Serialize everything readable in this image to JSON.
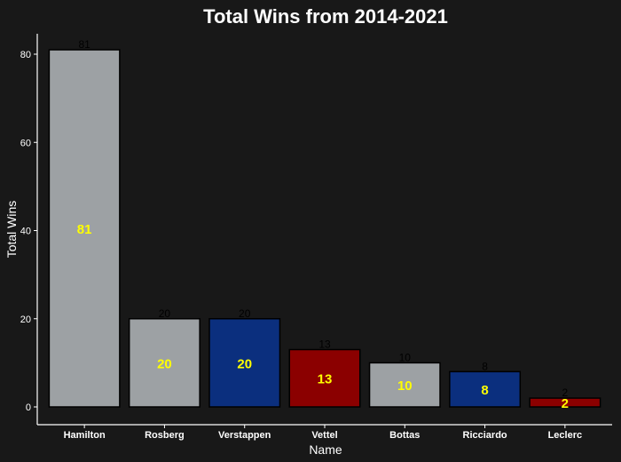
{
  "chart_data": {
    "type": "bar",
    "title": "Total Wins from 2014-2021",
    "xlabel": "Name",
    "ylabel": "Total Wins",
    "categories": [
      "Hamilton",
      "Rosberg",
      "Verstappen",
      "Vettel",
      "Bottas",
      "Ricciardo",
      "Leclerc"
    ],
    "values": [
      81,
      20,
      20,
      13,
      10,
      8,
      2
    ],
    "bar_colors": [
      "#9da1a4",
      "#9da1a4",
      "#0b2f7e",
      "#8b0000",
      "#9da1a4",
      "#0b2f7e",
      "#8b0000"
    ],
    "ylim": [
      0,
      85
    ],
    "yticks": [
      0,
      20,
      40,
      60,
      80
    ],
    "grid": false,
    "legend": "none",
    "background": "#181818",
    "label_top_color": "#000000",
    "label_mid_color": "#ffff00"
  }
}
